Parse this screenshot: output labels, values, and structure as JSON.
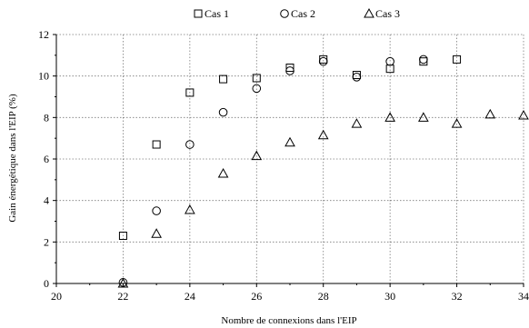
{
  "chart_data": {
    "type": "scatter",
    "xlabel": "Nombre de connexions dans l'EIP",
    "ylabel": "Gain énergétique dans l'EIP (%)",
    "xlim": [
      20,
      34
    ],
    "ylim": [
      0,
      12
    ],
    "x_ticks": [
      20,
      22,
      24,
      26,
      28,
      30,
      32,
      34
    ],
    "y_ticks": [
      0,
      2,
      4,
      6,
      8,
      10,
      12
    ],
    "x_tick_labels": [
      "20",
      "22",
      "24",
      "26",
      "28",
      "30",
      "32",
      "34"
    ],
    "y_tick_labels": [
      "0",
      "2",
      "4",
      "6",
      "8",
      "10",
      "12"
    ],
    "grid": "dotted horizontal and vertical at major ticks",
    "legend": "top-center",
    "series": [
      {
        "name": "Cas 1",
        "marker": "square",
        "points": [
          [
            22,
            2.3
          ],
          [
            23,
            6.7
          ],
          [
            24,
            9.2
          ],
          [
            25,
            9.85
          ],
          [
            26,
            9.9
          ],
          [
            27,
            10.4
          ],
          [
            28,
            10.8
          ],
          [
            29,
            10.05
          ],
          [
            30,
            10.35
          ],
          [
            31,
            10.7
          ],
          [
            32,
            10.8
          ]
        ]
      },
      {
        "name": "Cas 2",
        "marker": "circle",
        "points": [
          [
            22,
            0.05
          ],
          [
            23,
            3.5
          ],
          [
            24,
            6.7
          ],
          [
            25,
            8.25
          ],
          [
            26,
            9.4
          ],
          [
            27,
            10.25
          ],
          [
            28,
            10.7
          ],
          [
            29,
            9.95
          ],
          [
            30,
            10.7
          ],
          [
            31,
            10.8
          ]
        ]
      },
      {
        "name": "Cas 3",
        "marker": "triangle",
        "points": [
          [
            22,
            0.0
          ],
          [
            23,
            2.4
          ],
          [
            24,
            3.55
          ],
          [
            25,
            5.3
          ],
          [
            26,
            6.15
          ],
          [
            27,
            6.8
          ],
          [
            28,
            7.15
          ],
          [
            29,
            7.7
          ],
          [
            30,
            8.0
          ],
          [
            31,
            8.0
          ],
          [
            32,
            7.7
          ],
          [
            33,
            8.15
          ],
          [
            34,
            8.1
          ]
        ]
      }
    ]
  }
}
